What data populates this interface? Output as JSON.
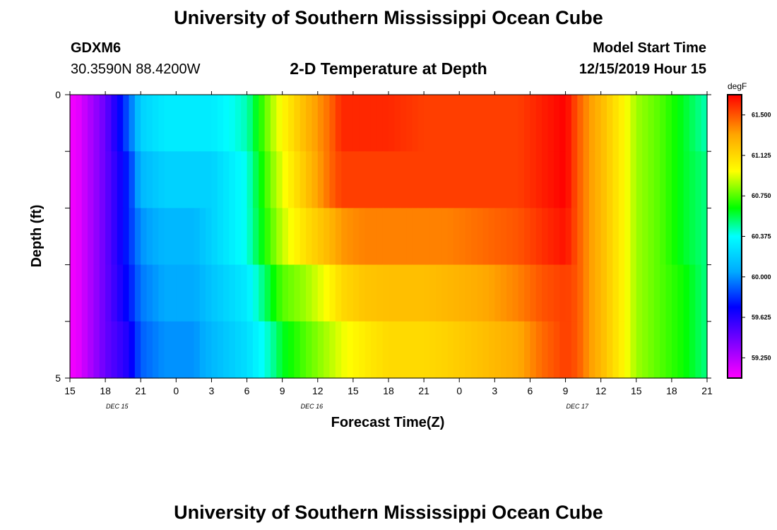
{
  "header": {
    "top_title": "University of Southern Mississippi Ocean Cube",
    "station_id": "GDXM6",
    "coordinates": "30.3590N 88.4200W",
    "plot_title": "2-D Temperature at Depth",
    "model_start_label": "Model Start Time",
    "model_start_value": "12/15/2019 Hour 15"
  },
  "footer": {
    "bottom_title": "University of Southern Mississippi Ocean Cube"
  },
  "chart_data": {
    "type": "heatmap",
    "title": "2-D Temperature at Depth",
    "xlabel": "Forecast Time(Z)",
    "ylabel": "Depth (ft)",
    "x_tick_labels": [
      "15",
      "18",
      "21",
      "0",
      "3",
      "6",
      "9",
      "12",
      "15",
      "18",
      "21",
      "0",
      "3",
      "6",
      "9",
      "12",
      "15",
      "18",
      "21"
    ],
    "x_hours_from_start": [
      0,
      3,
      6,
      9,
      12,
      15,
      18,
      21,
      24,
      27,
      30,
      33,
      36,
      39,
      42,
      45,
      48,
      51,
      54
    ],
    "date_labels": [
      {
        "label": "DEC 15",
        "hour": 4.0
      },
      {
        "label": "DEC 16",
        "hour": 20.5
      },
      {
        "label": "DEC 17",
        "hour": 43.0
      }
    ],
    "xlim": [
      0,
      54
    ],
    "y_tick_labels": [
      "0",
      "5"
    ],
    "ylim": [
      0,
      5
    ],
    "depth_rows": [
      0.5,
      1.5,
      2.5,
      3.5,
      4.5
    ],
    "colorbar": {
      "unit": "degF",
      "min": 59.0625,
      "max": 61.6875,
      "labels": [
        "61.500",
        "61.125",
        "60.750",
        "60.375",
        "60.000",
        "59.625",
        "59.250"
      ],
      "label_values": [
        61.5,
        61.125,
        60.75,
        60.375,
        60.0,
        59.625,
        59.25
      ]
    },
    "anchor_hours": [
      0,
      0.5,
      3,
      5,
      6,
      8,
      10.5,
      12,
      15,
      17,
      18,
      20,
      22,
      23,
      25,
      27,
      30,
      32,
      35,
      38,
      40,
      42,
      43,
      44,
      45,
      46,
      47,
      48,
      50,
      52,
      54
    ],
    "values_by_row": [
      [
        59.1,
        59.1,
        59.45,
        59.9,
        60.2,
        60.3,
        60.3,
        60.3,
        60.45,
        60.85,
        61.0,
        61.25,
        61.45,
        61.6,
        61.6,
        61.6,
        61.55,
        61.55,
        61.55,
        61.55,
        61.62,
        61.69,
        61.5,
        61.35,
        61.25,
        61.12,
        61.0,
        60.85,
        60.75,
        60.6,
        60.45
      ],
      [
        59.1,
        59.1,
        59.45,
        59.8,
        60.1,
        60.2,
        60.2,
        60.2,
        60.4,
        60.8,
        60.95,
        61.2,
        61.45,
        61.55,
        61.55,
        61.55,
        61.55,
        61.55,
        61.55,
        61.55,
        61.62,
        61.69,
        61.5,
        61.35,
        61.25,
        61.12,
        61.0,
        60.85,
        60.75,
        60.6,
        60.5
      ],
      [
        59.1,
        59.1,
        59.45,
        59.8,
        60.0,
        60.1,
        60.1,
        60.2,
        60.4,
        60.75,
        60.9,
        61.1,
        61.25,
        61.35,
        61.4,
        61.4,
        61.4,
        61.4,
        61.45,
        61.5,
        61.58,
        61.65,
        61.5,
        61.35,
        61.25,
        61.12,
        61.0,
        60.85,
        60.75,
        60.6,
        60.5
      ],
      [
        59.1,
        59.1,
        59.45,
        59.75,
        59.95,
        60.05,
        60.05,
        60.15,
        60.3,
        60.6,
        60.75,
        60.85,
        61.0,
        61.12,
        61.2,
        61.22,
        61.22,
        61.25,
        61.3,
        61.4,
        61.5,
        61.55,
        61.5,
        61.35,
        61.25,
        61.12,
        61.0,
        60.85,
        60.75,
        60.65,
        60.5
      ],
      [
        59.1,
        59.1,
        59.45,
        59.65,
        59.9,
        60.0,
        60.0,
        60.1,
        60.25,
        60.45,
        60.6,
        60.75,
        60.88,
        60.95,
        61.05,
        61.12,
        61.12,
        61.15,
        61.22,
        61.3,
        61.45,
        61.55,
        61.5,
        61.35,
        61.25,
        61.12,
        61.0,
        60.85,
        60.75,
        60.65,
        60.5
      ]
    ]
  }
}
